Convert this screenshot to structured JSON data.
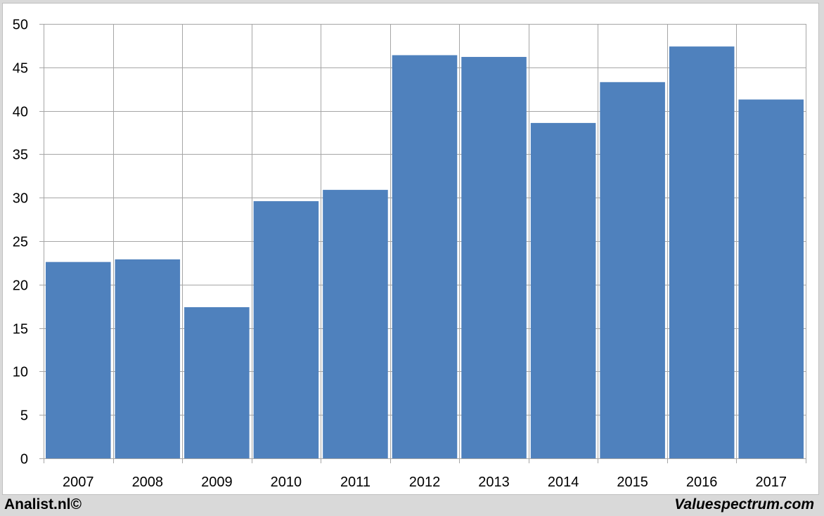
{
  "chart_data": {
    "type": "bar",
    "categories": [
      "2007",
      "2008",
      "2009",
      "2010",
      "2011",
      "2012",
      "2013",
      "2014",
      "2015",
      "2016",
      "2017"
    ],
    "values": [
      22.6,
      22.9,
      17.4,
      29.6,
      30.9,
      46.4,
      46.2,
      38.6,
      43.3,
      47.4,
      41.3
    ],
    "title": "",
    "xlabel": "",
    "ylabel": "",
    "ylim": [
      0,
      50
    ],
    "yticks": [
      0,
      5,
      10,
      15,
      20,
      25,
      30,
      35,
      40,
      45,
      50
    ],
    "grid": true,
    "legend": "none",
    "bar_color": "#4f81bd"
  },
  "footer": {
    "left_text": "Analist.nl©",
    "right_text": "Valuespectrum.com"
  },
  "colors": {
    "background": "#d9d9d9",
    "plot_background": "#ffffff",
    "grid": "#a6a6a6"
  }
}
